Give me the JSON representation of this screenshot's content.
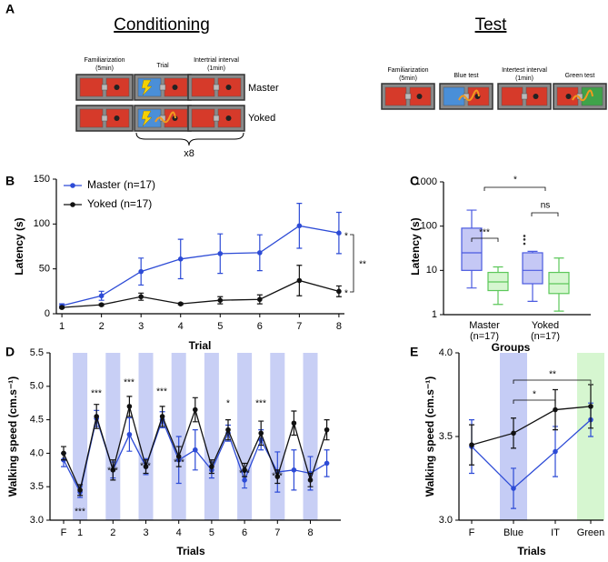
{
  "panel_labels": [
    "A",
    "B",
    "C",
    "D",
    "E"
  ],
  "conditioning": {
    "title": "Conditioning",
    "phases": [
      [
        "Familiarization",
        "(5min)"
      ],
      [
        "Trial"
      ],
      [
        "Intertrial interval",
        "(1min)"
      ]
    ],
    "rows": [
      "Master",
      "Yoked"
    ],
    "repeat": "x8"
  },
  "test": {
    "title": "Test",
    "phases": [
      [
        "Familiarization",
        "(5min)"
      ],
      [
        "Blue test"
      ],
      [
        "Intertest interval",
        "(1min)"
      ],
      [
        "Green test"
      ]
    ]
  },
  "chart_data": [
    {
      "type": "line",
      "xlabel": "Trial",
      "ylabel": "Latency (s)",
      "x": [
        1,
        2,
        3,
        4,
        5,
        6,
        7,
        8
      ],
      "xlim": [
        0.86,
        8.14
      ],
      "xticks": [
        1,
        2,
        3,
        4,
        5,
        6,
        7,
        8
      ],
      "ylim": [
        0,
        150
      ],
      "yticks": [
        0,
        50,
        100,
        150
      ],
      "legend": "upper left",
      "series": [
        {
          "name": "Master (n=17)",
          "color": "#2d4bd6",
          "values": [
            9,
            20,
            47,
            61,
            67,
            68,
            98,
            90
          ],
          "errors": [
            2,
            5,
            15,
            22,
            22,
            20,
            25,
            23
          ]
        },
        {
          "name": "Yoked (n=17)",
          "color": "#111111",
          "values": [
            7,
            10,
            19,
            11,
            15,
            16,
            37,
            25
          ],
          "errors": [
            1,
            1,
            4,
            1,
            4,
            5,
            17,
            6
          ]
        }
      ],
      "annotations": [
        "*",
        "*",
        "**"
      ]
    },
    {
      "type": "box",
      "xlabel": "Groups",
      "ylabel": "Latency (s)",
      "log_y": true,
      "categories": [
        "Master",
        "Yoked"
      ],
      "category_notes": [
        "(n=17)",
        "(n=17)"
      ],
      "ylim": [
        1,
        1000
      ],
      "yticks": [
        1,
        10,
        100,
        1000
      ],
      "series": [
        {
          "color": "#4a5ae0",
          "fill": "#c5c8f5",
          "boxes": [
            {
              "min": 4,
              "q1": 10,
              "median": 25,
              "q3": 90,
              "max": 230,
              "outliers": []
            },
            {
              "min": 2,
              "q1": 5,
              "median": 10,
              "q3": 25,
              "max": 27,
              "outliers": [
                40,
                50,
                60
              ]
            }
          ]
        },
        {
          "color": "#5cc85a",
          "fill": "#d6f6d0",
          "boxes": [
            {
              "min": 1.7,
              "q1": 3.5,
              "median": 5.5,
              "q3": 9,
              "max": 12,
              "outliers": []
            },
            {
              "min": 1.2,
              "q1": 3,
              "median": 5,
              "q3": 9,
              "max": 19,
              "outliers": []
            }
          ]
        }
      ],
      "annotations": [
        "***",
        "ns",
        "*"
      ]
    },
    {
      "type": "line",
      "xlabel": "Trials",
      "ylabel": "Walking speed (cm.s⁻¹)",
      "categories": [
        "F",
        "1",
        null,
        "2",
        null,
        "3",
        null,
        "4",
        null,
        "5",
        null,
        "6",
        null,
        "7",
        null,
        "8",
        null
      ],
      "band_colors": [
        "none",
        "#c8cff5",
        "none",
        "#c8cff5",
        "none",
        "#c8cff5",
        "none",
        "#c8cff5",
        "none",
        "#c8cff5",
        "none",
        "#c8cff5",
        "none",
        "#c8cff5",
        "none",
        "#c8cff5",
        "none"
      ],
      "ylim": [
        3,
        5.5
      ],
      "yticks": [
        {
          "value": 3,
          "label": "3.0"
        },
        3.5,
        {
          "value": 4,
          "label": "4.0"
        },
        4.5,
        {
          "value": 5,
          "label": "5.0"
        },
        5.5
      ],
      "series": [
        {
          "color": "#2d4bd6",
          "values": [
            3.9,
            3.42,
            4.52,
            3.75,
            4.28,
            3.8,
            4.5,
            3.9,
            4.05,
            3.75,
            4.3,
            3.6,
            4.2,
            3.72,
            3.75,
            3.7,
            3.85
          ],
          "errors": [
            0.1,
            0.08,
            0.12,
            0.12,
            0.25,
            0.12,
            0.12,
            0.35,
            0.3,
            0.12,
            0.12,
            0.12,
            0.15,
            0.3,
            0.3,
            0.25,
            0.2
          ]
        },
        {
          "color": "#111111",
          "values": [
            4.0,
            3.45,
            4.55,
            3.75,
            4.7,
            3.8,
            4.55,
            3.95,
            4.65,
            3.8,
            4.35,
            3.75,
            4.3,
            3.65,
            4.45,
            3.6,
            4.35
          ],
          "errors": [
            0.1,
            0.08,
            0.18,
            0.15,
            0.15,
            0.1,
            0.15,
            0.15,
            0.18,
            0.1,
            0.15,
            0.1,
            0.18,
            0.1,
            0.18,
            0.1,
            0.15
          ]
        }
      ],
      "annotations": [
        "***",
        "***",
        "***",
        "*",
        "***",
        "***",
        "***",
        "***",
        "***",
        "***",
        "***"
      ]
    },
    {
      "type": "line",
      "xlabel": "Trials",
      "ylabel": "Walking speed (cm.s⁻¹)",
      "categories": [
        "F",
        "Blue",
        "IT",
        "Green"
      ],
      "band_colors": [
        "none",
        "#c5ccf5",
        "none",
        "#d6f6d0"
      ],
      "ylim": [
        3,
        4
      ],
      "yticks": [
        {
          "value": 3,
          "label": "3.0"
        },
        3.5,
        {
          "value": 4,
          "label": "4.0"
        }
      ],
      "series": [
        {
          "color": "#2d4bd6",
          "values": [
            3.44,
            3.19,
            3.41,
            3.6
          ],
          "errors": [
            0.16,
            0.12,
            0.15,
            0.1
          ]
        },
        {
          "color": "#111111",
          "values": [
            3.45,
            3.52,
            3.66,
            3.68
          ],
          "errors": [
            0.12,
            0.09,
            0.12,
            0.13
          ]
        }
      ],
      "annotations": [
        "*",
        "**"
      ]
    }
  ]
}
